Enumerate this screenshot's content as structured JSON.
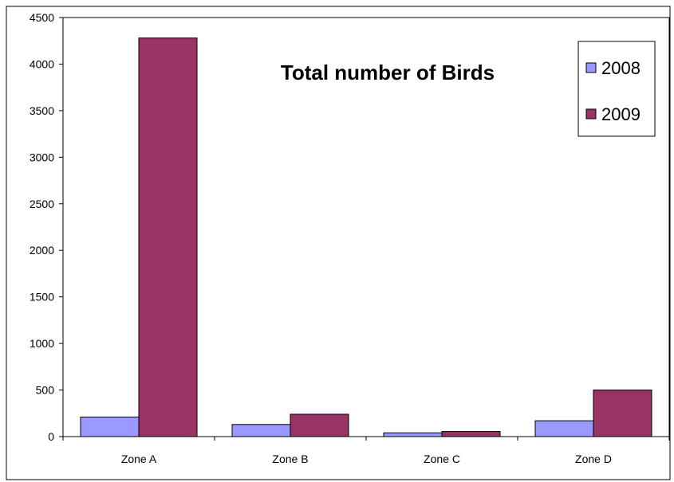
{
  "chart_data": {
    "type": "bar",
    "title": "Total number of Birds",
    "xlabel": "",
    "ylabel": "",
    "categories": [
      "Zone A",
      "Zone B",
      "Zone C",
      "Zone D"
    ],
    "series": [
      {
        "name": "2008",
        "values": [
          210,
          130,
          40,
          170
        ],
        "color": "#9999ff"
      },
      {
        "name": "2009",
        "values": [
          4280,
          240,
          55,
          500
        ],
        "color": "#993366"
      }
    ],
    "ylim": [
      0,
      4500
    ],
    "yticks": [
      0,
      500,
      1000,
      1500,
      2000,
      2500,
      3000,
      3500,
      4000,
      4500
    ],
    "grid": false,
    "legend_position": "top-right"
  }
}
